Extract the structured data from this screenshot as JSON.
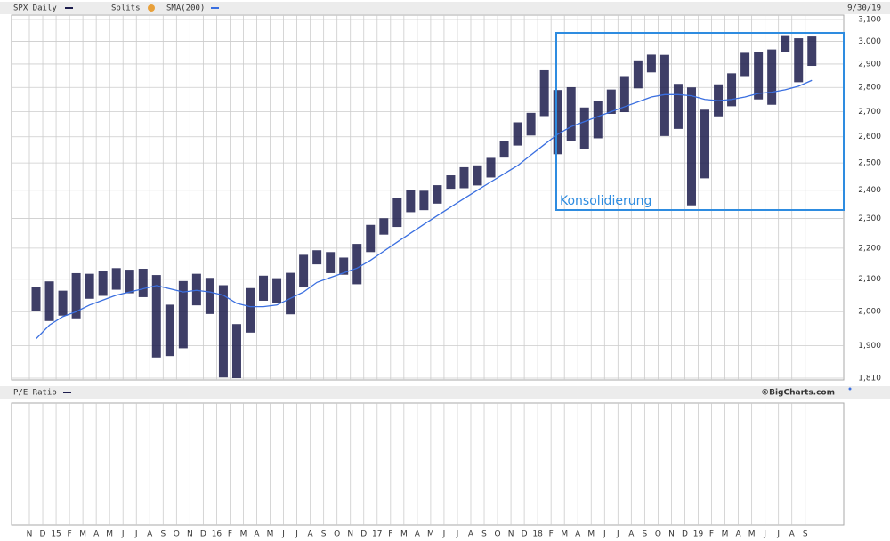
{
  "chart_data": {
    "type": "ohlc",
    "date": "9/30/19",
    "splits_label": "Splits",
    "annotation": "Konsolidierung",
    "lower_panel_title": "P/E Ratio",
    "source": "©BigCharts.com",
    "log": true,
    "grid": true,
    "categories": [
      "N",
      "D",
      "15",
      "F",
      "M",
      "A",
      "M",
      "J",
      "J",
      "A",
      "S",
      "O",
      "N",
      "D",
      "16",
      "F",
      "M",
      "A",
      "M",
      "J",
      "J",
      "A",
      "S",
      "O",
      "N",
      "D",
      "17",
      "F",
      "M",
      "A",
      "M",
      "J",
      "J",
      "A",
      "S",
      "O",
      "N",
      "D",
      "18",
      "F",
      "M",
      "A",
      "M",
      "J",
      "J",
      "A",
      "S",
      "O",
      "N",
      "D",
      "19",
      "F",
      "M",
      "A",
      "M",
      "J",
      "J",
      "A",
      "S"
    ],
    "series": [
      {
        "name": "SPX Daily",
        "color": "#1c1c4c",
        "high": [
          2075,
          2093,
          2064,
          2119,
          2117,
          2125,
          2135,
          2130,
          2133,
          2113,
          2021,
          2094,
          2117,
          2104,
          2081,
          1963,
          2072,
          2111,
          2103,
          2120,
          2178,
          2193,
          2187,
          2169,
          2214,
          2278,
          2301,
          2371,
          2401,
          2398,
          2418,
          2454,
          2484,
          2491,
          2519,
          2582,
          2657,
          2695,
          2873,
          2789,
          2801,
          2717,
          2742,
          2791,
          2848,
          2916,
          2941,
          2940,
          2815,
          2800,
          2708,
          2813,
          2860,
          2949,
          2954,
          2964,
          3028,
          3014,
          3022
        ],
        "low": [
          2001,
          1972,
          1988,
          1980,
          2039,
          2048,
          2067,
          2056,
          2044,
          1867,
          1871,
          1893,
          2019,
          1993,
          1812,
          1810,
          1938,
          2033,
          2025,
          1992,
          2074,
          2147,
          2119,
          2114,
          2084,
          2187,
          2245,
          2271,
          2322,
          2329,
          2352,
          2405,
          2407,
          2417,
          2446,
          2520,
          2566,
          2605,
          2682,
          2533,
          2585,
          2553,
          2594,
          2691,
          2698,
          2796,
          2864,
          2603,
          2631,
          2346,
          2443,
          2681,
          2722,
          2848,
          2750,
          2728,
          2952,
          2822,
          2892
        ]
      },
      {
        "name": "SMA(200)",
        "color": "#3a6fe0",
        "values": [
          1920,
          1960,
          1985,
          2000,
          2020,
          2035,
          2050,
          2060,
          2070,
          2080,
          2070,
          2060,
          2065,
          2060,
          2050,
          2025,
          2015,
          2015,
          2020,
          2040,
          2060,
          2090,
          2105,
          2120,
          2135,
          2160,
          2190,
          2220,
          2250,
          2280,
          2310,
          2340,
          2370,
          2400,
          2430,
          2460,
          2490,
          2530,
          2570,
          2610,
          2640,
          2660,
          2680,
          2700,
          2720,
          2740,
          2760,
          2770,
          2770,
          2765,
          2750,
          2745,
          2750,
          2760,
          2775,
          2780,
          2790,
          2805,
          2830
        ]
      }
    ],
    "ylim": [
      1810,
      3100
    ],
    "yticks": [
      {
        "value": 1810,
        "label": "1,810"
      },
      {
        "value": 1900,
        "label": "1,900"
      },
      {
        "value": 2000,
        "label": "2,000"
      },
      {
        "value": 2100,
        "label": "2,100"
      },
      {
        "value": 2200,
        "label": "2,200"
      },
      {
        "value": 2300,
        "label": "2,300"
      },
      {
        "value": 2400,
        "label": "2,400"
      },
      {
        "value": 2500,
        "label": "2,500"
      },
      {
        "value": 2600,
        "label": "2,600"
      },
      {
        "value": 2700,
        "label": "2,700"
      },
      {
        "value": 2800,
        "label": "2,800"
      },
      {
        "value": 2900,
        "label": "2,900"
      },
      {
        "value": 3000,
        "label": "3,000"
      },
      {
        "value": 3100,
        "label": "3,100"
      }
    ]
  }
}
